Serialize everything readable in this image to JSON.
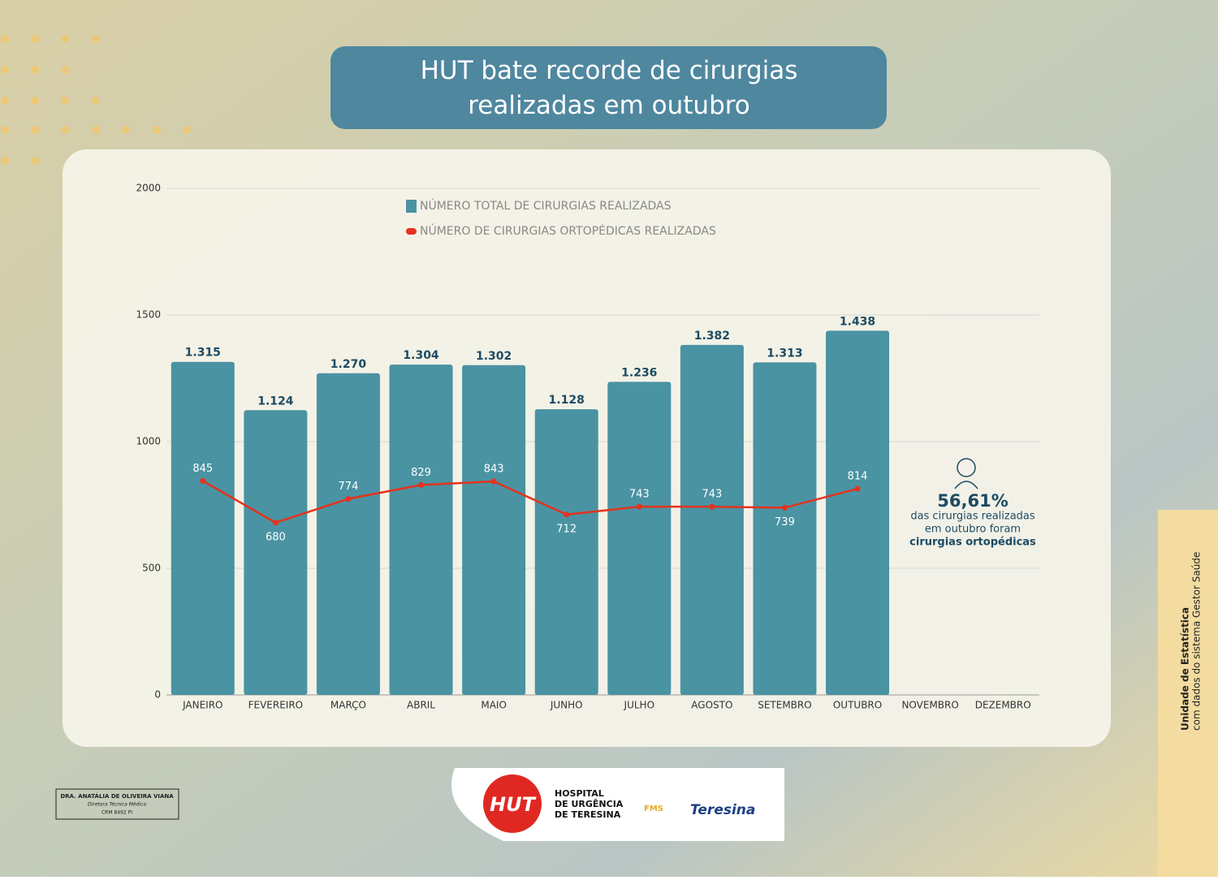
{
  "chart_data": {
    "type": "bar",
    "title": "HUT bate recorde de cirurgias realizadas em outubro",
    "categories": [
      "JANEIRO",
      "FEVEREIRO",
      "MARÇO",
      "ABRIL",
      "MAIO",
      "JUNHO",
      "JULHO",
      "AGOSTO",
      "SETEMBRO",
      "OUTUBRO",
      "NOVEMBRO",
      "DEZEMBRO"
    ],
    "series": [
      {
        "name": "NÚMERO TOTAL DE CIRURGIAS REALIZADAS",
        "type": "bar",
        "color": "#4a93a3",
        "values": [
          1315,
          1124,
          1270,
          1304,
          1302,
          1128,
          1236,
          1382,
          1313,
          1438,
          null,
          null
        ],
        "value_labels": [
          "1.315",
          "1.124",
          "1.270",
          "1.304",
          "1.302",
          "1.128",
          "1.236",
          "1.382",
          "1.313",
          "1.438",
          null,
          null
        ]
      },
      {
        "name": "NÚMERO DE CIRURGIAS ORTOPÉDICAS REALIZADAS",
        "type": "line",
        "color": "#e5321d",
        "values": [
          845,
          680,
          774,
          829,
          843,
          712,
          743,
          743,
          739,
          814,
          null,
          null
        ]
      }
    ],
    "ylim": [
      0,
      2000
    ],
    "yticks": [
      0,
      500,
      1000,
      1500,
      2000
    ],
    "grid": true,
    "annotation": {
      "value": "56,61%",
      "lines": [
        "das cirurgias realizadas",
        "em outubro foram",
        "cirurgias ortopédicas"
      ]
    },
    "side_note": [
      "Unidade de Estatística",
      "com dados do sistema Gestor Saúde"
    ],
    "signature": [
      "DRA. ANATÁLIA DE OLIVEIRA VIANA",
      "Diretora Técnica Médica",
      "CRM 8492 PI"
    ],
    "logos": {
      "hut": "HUT",
      "hospital": [
        "HOSPITAL",
        "DE URGÊNCIA",
        "DE TERESINA"
      ],
      "fms": "FMS",
      "city": "Teresina"
    }
  }
}
